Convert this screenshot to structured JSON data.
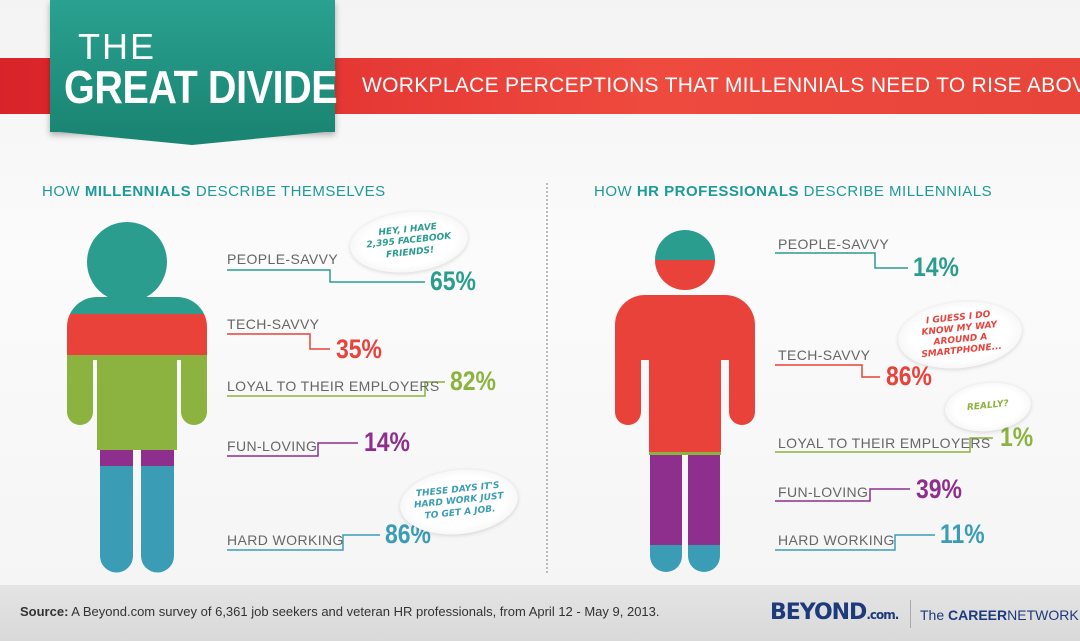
{
  "header": {
    "title_small": "THE",
    "title_big": "GREAT DIVIDE",
    "subtitle": "WORKPLACE PERCEPTIONS THAT MILLENNIALS NEED TO RISE ABOVE"
  },
  "left": {
    "heading_pre": "HOW ",
    "heading_bold": "MILLENNIALS",
    "heading_post": " DESCRIBE THEMSELVES",
    "items": [
      {
        "label": "PEOPLE-SAVVY",
        "value": "65%",
        "color": "#2a9d8f"
      },
      {
        "label": "TECH-SAVVY",
        "value": "35%",
        "color": "#e8423a"
      },
      {
        "label": "LOYAL TO THEIR EMPLOYERS",
        "value": "82%",
        "color": "#8cb33f"
      },
      {
        "label": "FUN-LOVING",
        "value": "14%",
        "color": "#8e2f8e"
      },
      {
        "label": "HARD WORKING",
        "value": "86%",
        "color": "#3a9db5"
      }
    ],
    "bubbles": [
      "HEY, I HAVE 2,395 FACEBOOK FRIENDS!",
      "THESE DAYS IT'S HARD WORK JUST TO GET A JOB."
    ]
  },
  "right": {
    "heading_pre": "HOW ",
    "heading_bold": "HR PROFESSIONALS",
    "heading_post": " DESCRIBE MILLENNIALS",
    "items": [
      {
        "label": "PEOPLE-SAVVY",
        "value": "14%",
        "color": "#2a9d8f"
      },
      {
        "label": "TECH-SAVVY",
        "value": "86%",
        "color": "#e8423a"
      },
      {
        "label": "LOYAL TO THEIR EMPLOYERS",
        "value": "1%",
        "color": "#8cb33f"
      },
      {
        "label": "FUN-LOVING",
        "value": "39%",
        "color": "#8e2f8e"
      },
      {
        "label": "HARD WORKING",
        "value": "11%",
        "color": "#3a9db5"
      }
    ],
    "bubbles": [
      "I GUESS I DO KNOW MY WAY AROUND A SMARTPHONE...",
      "REALLY?"
    ]
  },
  "footer": {
    "source_label": "Source:",
    "source_text": " A Beyond.com survey of 6,361 job seekers and veteran HR professionals, from April 12 - May 9, 2013.",
    "logo": "BEYOND",
    "logo_suffix": ".com.",
    "tagline_pre": "The ",
    "tagline_bold": "CAREER",
    "tagline_post": "NETWORK™"
  }
}
